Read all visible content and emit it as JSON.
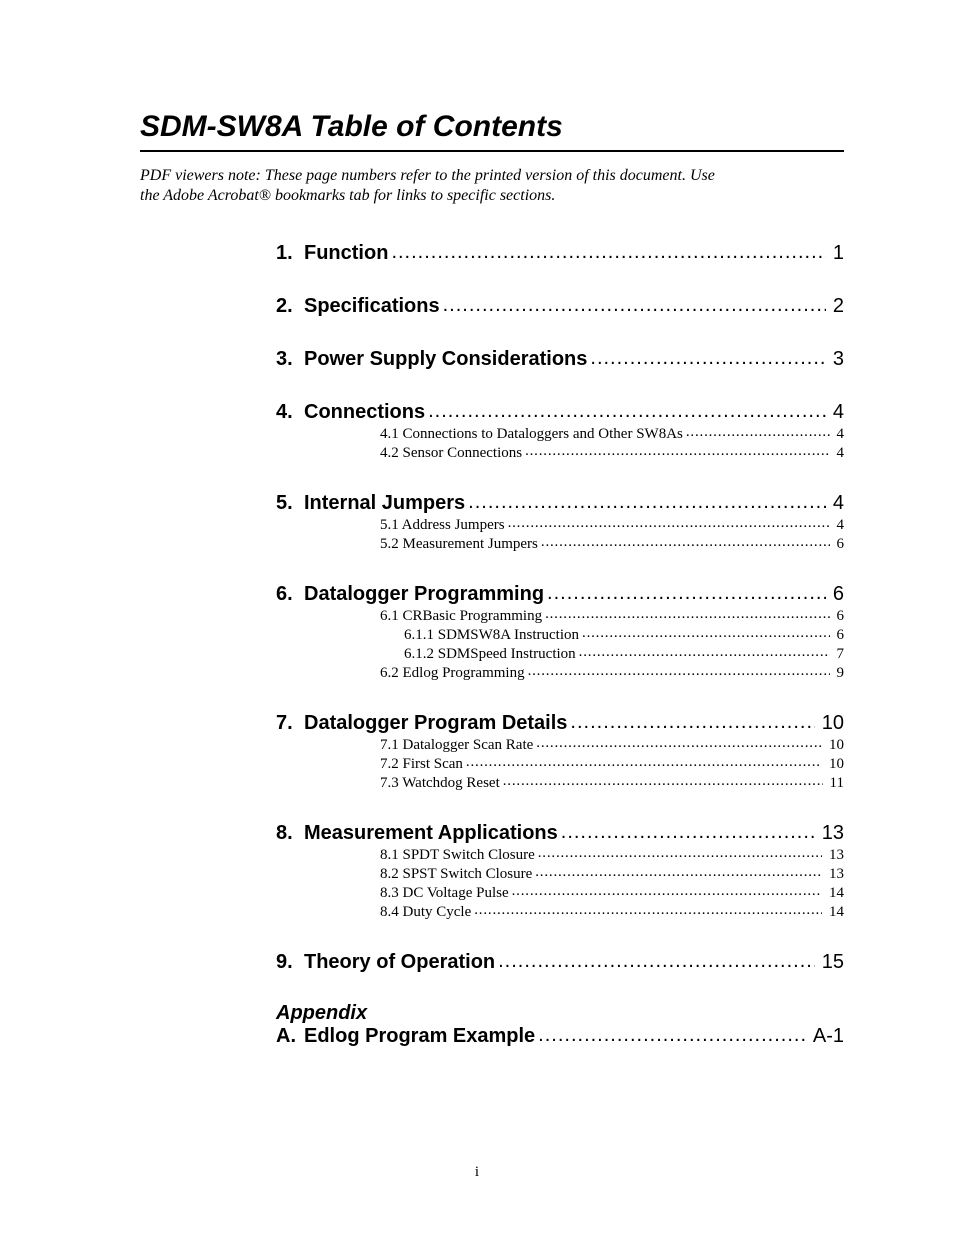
{
  "title": "SDM-SW8A Table of Contents",
  "note_line1": "PDF viewers note:  These page numbers refer to the printed version of this document.  Use",
  "note_line2": "the Adobe Acrobat® bookmarks tab for links to specific sections.",
  "appendix_heading": "Appendix",
  "footer_page": "i",
  "colors": {
    "text": "#000000",
    "background": "#ffffff",
    "rule": "#000000"
  },
  "typography": {
    "title_fontsize": 30,
    "level1_fontsize": 20,
    "sub_fontsize": 15,
    "note_fontsize": 16,
    "title_family": "Arial",
    "body_family": "Times New Roman"
  },
  "entries": [
    {
      "level": 1,
      "num": "1.",
      "label": "Function",
      "page": "1"
    },
    {
      "level": 1,
      "num": "2.",
      "label": "Specifications",
      "page": "2"
    },
    {
      "level": 1,
      "num": "3.",
      "label": "Power Supply Considerations",
      "page": "3"
    },
    {
      "level": 1,
      "num": "4.",
      "label": "Connections",
      "page": "4"
    },
    {
      "level": 2,
      "num": "4.1",
      "label": "Connections to Dataloggers and Other SW8As",
      "page": "4"
    },
    {
      "level": 2,
      "num": "4.2",
      "label": "Sensor Connections",
      "page": "4"
    },
    {
      "level": 1,
      "num": "5.",
      "label": "Internal Jumpers",
      "page": "4"
    },
    {
      "level": 2,
      "num": "5.1",
      "label": "Address Jumpers",
      "page": "4"
    },
    {
      "level": 2,
      "num": "5.2",
      "label": "Measurement Jumpers",
      "page": "6"
    },
    {
      "level": 1,
      "num": "6.",
      "label": "Datalogger Programming",
      "page": "6"
    },
    {
      "level": 2,
      "num": "6.1",
      "label": "CRBasic Programming",
      "page": "6"
    },
    {
      "level": 3,
      "num": "6.1.1",
      "label": "SDMSW8A Instruction",
      "page": "6"
    },
    {
      "level": 3,
      "num": "6.1.2",
      "label": "SDMSpeed Instruction",
      "page": "7"
    },
    {
      "level": 2,
      "num": "6.2",
      "label": "Edlog Programming",
      "page": "9"
    },
    {
      "level": 1,
      "num": "7.",
      "label": "Datalogger Program Details",
      "page": "10"
    },
    {
      "level": 2,
      "num": "7.1",
      "label": "Datalogger Scan Rate",
      "page": "10"
    },
    {
      "level": 2,
      "num": "7.2",
      "label": "First Scan",
      "page": "10"
    },
    {
      "level": 2,
      "num": "7.3",
      "label": "Watchdog Reset",
      "page": "11"
    },
    {
      "level": 1,
      "num": "8.",
      "label": "Measurement Applications",
      "page": "13"
    },
    {
      "level": 2,
      "num": "8.1",
      "label": "SPDT Switch Closure",
      "page": "13"
    },
    {
      "level": 2,
      "num": "8.2",
      "label": "SPST Switch Closure",
      "page": "13"
    },
    {
      "level": 2,
      "num": "8.3",
      "label": "DC Voltage Pulse",
      "page": "14"
    },
    {
      "level": 2,
      "num": "8.4",
      "label": "Duty Cycle",
      "page": "14"
    },
    {
      "level": 1,
      "num": "9.",
      "label": "Theory of Operation",
      "page": "15"
    }
  ],
  "appendix_entries": [
    {
      "level": 1,
      "num": "A.",
      "label": "Edlog Program Example",
      "page": "A-1"
    }
  ]
}
